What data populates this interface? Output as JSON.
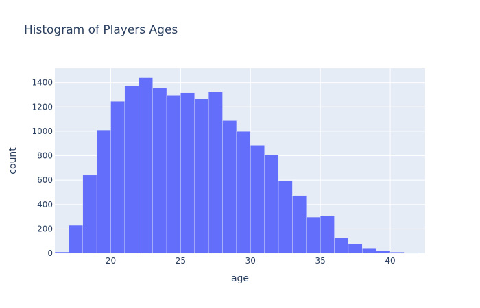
{
  "chart_data": {
    "type": "bar",
    "title": "Histogram of Players Ages",
    "xlabel": "age",
    "ylabel": "count",
    "bins": [
      {
        "x0": 16,
        "x1": 17,
        "count": 11
      },
      {
        "x0": 17,
        "x1": 18,
        "count": 230
      },
      {
        "x0": 18,
        "x1": 19,
        "count": 641
      },
      {
        "x0": 19,
        "x1": 20,
        "count": 1010
      },
      {
        "x0": 20,
        "x1": 21,
        "count": 1245
      },
      {
        "x0": 21,
        "x1": 22,
        "count": 1375
      },
      {
        "x0": 22,
        "x1": 23,
        "count": 1440
      },
      {
        "x0": 23,
        "x1": 24,
        "count": 1358
      },
      {
        "x0": 24,
        "x1": 25,
        "count": 1295
      },
      {
        "x0": 25,
        "x1": 26,
        "count": 1315
      },
      {
        "x0": 26,
        "x1": 27,
        "count": 1265
      },
      {
        "x0": 27,
        "x1": 28,
        "count": 1322
      },
      {
        "x0": 28,
        "x1": 29,
        "count": 1087
      },
      {
        "x0": 29,
        "x1": 30,
        "count": 998
      },
      {
        "x0": 30,
        "x1": 31,
        "count": 885
      },
      {
        "x0": 31,
        "x1": 32,
        "count": 806
      },
      {
        "x0": 32,
        "x1": 33,
        "count": 596
      },
      {
        "x0": 33,
        "x1": 34,
        "count": 473
      },
      {
        "x0": 34,
        "x1": 35,
        "count": 297
      },
      {
        "x0": 35,
        "x1": 36,
        "count": 308
      },
      {
        "x0": 36,
        "x1": 37,
        "count": 127
      },
      {
        "x0": 37,
        "x1": 38,
        "count": 77
      },
      {
        "x0": 38,
        "x1": 39,
        "count": 38
      },
      {
        "x0": 39,
        "x1": 40,
        "count": 20
      },
      {
        "x0": 40,
        "x1": 41,
        "count": 10
      },
      {
        "x0": 41,
        "x1": 42,
        "count": 3
      }
    ],
    "x_ticks": [
      20,
      25,
      30,
      35,
      40
    ],
    "y_ticks": [
      0,
      200,
      400,
      600,
      800,
      1000,
      1200,
      1400
    ],
    "xlim": [
      16,
      42.5
    ],
    "ylim": [
      0,
      1516
    ],
    "grid": true,
    "legend": "none",
    "colors": {
      "bar": "#636efa",
      "plot_background": "#e5ecf6",
      "gridline": "#ffffff",
      "text": "#2a3f5f"
    }
  }
}
